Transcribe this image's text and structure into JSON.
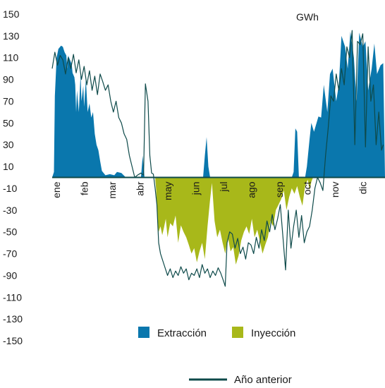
{
  "chart_data": {
    "type": "area",
    "title": "",
    "unit_label": "GWh",
    "xlabel": "",
    "ylabel": "",
    "ylim": [
      -150,
      150
    ],
    "yticks": [
      150,
      130,
      110,
      90,
      70,
      50,
      30,
      10,
      -10,
      -30,
      -50,
      -70,
      -90,
      -110,
      -130,
      -150
    ],
    "categories": [
      "ene",
      "feb",
      "mar",
      "abr",
      "may",
      "jun",
      "jul",
      "ago",
      "sep",
      "oct",
      "nov",
      "dic"
    ],
    "legend": {
      "extraccion_label": "Extracción",
      "inyeccion_label": "Inyección",
      "anterior_label": "Año anterior",
      "position": "bottom"
    },
    "colors": {
      "extraccion": "#0a77ad",
      "inyeccion": "#a8b81a",
      "anterior": "#0e4a4a",
      "axis": "#0e4a4a"
    },
    "series": [
      {
        "name": "Extracción",
        "points": [
          [
            0,
            0
          ],
          [
            0.2,
            5
          ],
          [
            0.3,
            75
          ],
          [
            0.5,
            110
          ],
          [
            0.7,
            118
          ],
          [
            1,
            121
          ],
          [
            1.2,
            120
          ],
          [
            1.4,
            115
          ],
          [
            1.6,
            112
          ],
          [
            1.7,
            100
          ],
          [
            1.8,
            112
          ],
          [
            2,
            108
          ],
          [
            2.2,
            104
          ],
          [
            2.3,
            96
          ],
          [
            2.5,
            92
          ],
          [
            2.6,
            85
          ],
          [
            2.7,
            60
          ],
          [
            2.8,
            80
          ],
          [
            3,
            60
          ],
          [
            3.2,
            95
          ],
          [
            3.3,
            70
          ],
          [
            3.5,
            84
          ],
          [
            3.6,
            65
          ],
          [
            3.8,
            90
          ],
          [
            4,
            60
          ],
          [
            4.2,
            68
          ],
          [
            4.4,
            55
          ],
          [
            4.6,
            60
          ],
          [
            4.8,
            40
          ],
          [
            5,
            30
          ],
          [
            5.2,
            25
          ],
          [
            5.4,
            15
          ],
          [
            5.6,
            6
          ],
          [
            6,
            2
          ],
          [
            6.5,
            3
          ],
          [
            7,
            2
          ],
          [
            7.3,
            5
          ],
          [
            7.8,
            4
          ],
          [
            8.3,
            0
          ],
          [
            10,
            0
          ],
          [
            10.2,
            20
          ],
          [
            10.4,
            0
          ],
          [
            12,
            0
          ],
          [
            16,
            0
          ],
          [
            17,
            0
          ],
          [
            17.2,
            20
          ],
          [
            17.4,
            37
          ],
          [
            17.6,
            10
          ],
          [
            17.8,
            0
          ],
          [
            24,
            0
          ],
          [
            27,
            0
          ],
          [
            27.2,
            5
          ],
          [
            27.4,
            45
          ],
          [
            27.6,
            42
          ],
          [
            27.8,
            0
          ],
          [
            28.5,
            0
          ],
          [
            28.7,
            10
          ],
          [
            29,
            35
          ],
          [
            29.2,
            50
          ],
          [
            29.5,
            42
          ],
          [
            30,
            56
          ],
          [
            30.3,
            55
          ],
          [
            30.6,
            85
          ],
          [
            31,
            60
          ],
          [
            31.3,
            95
          ],
          [
            31.6,
            100
          ],
          [
            32,
            70
          ],
          [
            32.3,
            85
          ],
          [
            32.6,
            130
          ],
          [
            33,
            120
          ],
          [
            33.3,
            100
          ],
          [
            33.6,
            134
          ],
          [
            34,
            110
          ],
          [
            34.3,
            70
          ],
          [
            34.6,
            133
          ],
          [
            35,
            120
          ],
          [
            35.3,
            125
          ],
          [
            35.6,
            80
          ],
          [
            36,
            100
          ],
          [
            36.3,
            123
          ],
          [
            36.6,
            95
          ],
          [
            37,
            103
          ],
          [
            37.3,
            105
          ],
          [
            37.5,
            0
          ]
        ]
      },
      {
        "name": "Inyección",
        "points": [
          [
            11.6,
            0
          ],
          [
            11.7,
            -10
          ],
          [
            11.9,
            -40
          ],
          [
            12,
            -50
          ],
          [
            12.2,
            -45
          ],
          [
            12.4,
            -53
          ],
          [
            12.6,
            -46
          ],
          [
            12.8,
            -38
          ],
          [
            13,
            -55
          ],
          [
            13.3,
            -42
          ],
          [
            13.6,
            -45
          ],
          [
            13.9,
            -35
          ],
          [
            14.2,
            -60
          ],
          [
            14.5,
            -44
          ],
          [
            14.8,
            -50
          ],
          [
            15.1,
            -55
          ],
          [
            15.4,
            -62
          ],
          [
            15.7,
            -70
          ],
          [
            16,
            -65
          ],
          [
            16.3,
            -78
          ],
          [
            16.6,
            -68
          ],
          [
            16.9,
            -60
          ],
          [
            17.2,
            -75
          ],
          [
            17.5,
            -45
          ],
          [
            17.8,
            -20
          ],
          [
            18,
            -5
          ],
          [
            18.3,
            -40
          ],
          [
            18.6,
            -55
          ],
          [
            18.9,
            -48
          ],
          [
            19.2,
            -60
          ],
          [
            19.5,
            -70
          ],
          [
            19.8,
            -55
          ],
          [
            20.1,
            -68
          ],
          [
            20.4,
            -64
          ],
          [
            20.7,
            -80
          ],
          [
            21,
            -72
          ],
          [
            21.3,
            -58
          ],
          [
            21.6,
            -50
          ],
          [
            21.9,
            -45
          ],
          [
            22.2,
            -52
          ],
          [
            22.5,
            -38
          ],
          [
            22.8,
            -55
          ],
          [
            23.1,
            -48
          ],
          [
            23.4,
            -58
          ],
          [
            23.7,
            -70
          ],
          [
            24,
            -62
          ],
          [
            24.3,
            -55
          ],
          [
            24.6,
            -40
          ],
          [
            24.9,
            -45
          ],
          [
            25.2,
            -30
          ],
          [
            25.5,
            -25
          ],
          [
            25.8,
            -20
          ],
          [
            26.1,
            -12
          ],
          [
            26.4,
            -30
          ],
          [
            26.7,
            -18
          ],
          [
            27,
            -10
          ],
          [
            27.3,
            -15
          ],
          [
            27.6,
            -8
          ],
          [
            27.9,
            -18
          ],
          [
            28.2,
            -26
          ],
          [
            28.5,
            -8
          ],
          [
            28.8,
            -2
          ],
          [
            29,
            -12
          ],
          [
            29.2,
            -4
          ],
          [
            29.4,
            0
          ]
        ]
      },
      {
        "name": "Año anterior",
        "points": [
          [
            0,
            100
          ],
          [
            0.3,
            115
          ],
          [
            0.6,
            103
          ],
          [
            0.9,
            112
          ],
          [
            1.2,
            108
          ],
          [
            1.5,
            95
          ],
          [
            1.8,
            110
          ],
          [
            2.1,
            100
          ],
          [
            2.4,
            113
          ],
          [
            2.7,
            96
          ],
          [
            3,
            108
          ],
          [
            3.3,
            90
          ],
          [
            3.6,
            102
          ],
          [
            3.9,
            85
          ],
          [
            4.2,
            98
          ],
          [
            4.5,
            80
          ],
          [
            4.8,
            93
          ],
          [
            5.1,
            76
          ],
          [
            5.4,
            95
          ],
          [
            5.7,
            88
          ],
          [
            6,
            80
          ],
          [
            6.3,
            85
          ],
          [
            6.6,
            70
          ],
          [
            6.9,
            60
          ],
          [
            7.2,
            70
          ],
          [
            7.5,
            55
          ],
          [
            7.8,
            50
          ],
          [
            8.1,
            40
          ],
          [
            8.4,
            35
          ],
          [
            8.7,
            20
          ],
          [
            9,
            10
          ],
          [
            9.3,
            0
          ],
          [
            9.6,
            2
          ],
          [
            10,
            4
          ],
          [
            10.3,
            2
          ],
          [
            10.5,
            86
          ],
          [
            10.8,
            70
          ],
          [
            11,
            20
          ],
          [
            11.2,
            4
          ],
          [
            11.4,
            3
          ],
          [
            11.6,
            -10
          ],
          [
            11.8,
            -25
          ],
          [
            12,
            -60
          ],
          [
            12.2,
            -70
          ],
          [
            12.4,
            -75
          ],
          [
            12.6,
            -80
          ],
          [
            12.8,
            -85
          ],
          [
            13,
            -90
          ],
          [
            13.3,
            -84
          ],
          [
            13.6,
            -92
          ],
          [
            13.9,
            -86
          ],
          [
            14.2,
            -90
          ],
          [
            14.5,
            -82
          ],
          [
            14.8,
            -88
          ],
          [
            15.1,
            -84
          ],
          [
            15.4,
            -94
          ],
          [
            15.7,
            -88
          ],
          [
            16,
            -90
          ],
          [
            16.3,
            -84
          ],
          [
            16.6,
            -92
          ],
          [
            16.9,
            -80
          ],
          [
            17.2,
            -88
          ],
          [
            17.5,
            -84
          ],
          [
            17.8,
            -92
          ],
          [
            18.1,
            -86
          ],
          [
            18.4,
            -90
          ],
          [
            18.7,
            -83
          ],
          [
            19,
            -88
          ],
          [
            19.3,
            -95
          ],
          [
            19.5,
            -100
          ],
          [
            19.7,
            -60
          ],
          [
            20,
            -50
          ],
          [
            20.3,
            -52
          ],
          [
            20.6,
            -65
          ],
          [
            20.9,
            -56
          ],
          [
            21.2,
            -70
          ],
          [
            21.5,
            -64
          ],
          [
            21.8,
            -75
          ],
          [
            22.1,
            -60
          ],
          [
            22.4,
            -62
          ],
          [
            22.7,
            -70
          ],
          [
            23,
            -55
          ],
          [
            23.3,
            -65
          ],
          [
            23.6,
            -48
          ],
          [
            23.9,
            -58
          ],
          [
            24.2,
            -40
          ],
          [
            24.5,
            -50
          ],
          [
            24.8,
            -34
          ],
          [
            25.1,
            -48
          ],
          [
            25.4,
            -38
          ],
          [
            25.7,
            -25
          ],
          [
            26,
            -55
          ],
          [
            26.3,
            -85
          ],
          [
            26.6,
            -30
          ],
          [
            26.9,
            -65
          ],
          [
            27.2,
            -45
          ],
          [
            27.5,
            -30
          ],
          [
            27.8,
            -55
          ],
          [
            28.1,
            -35
          ],
          [
            28.4,
            -60
          ],
          [
            28.7,
            -50
          ],
          [
            29,
            -45
          ],
          [
            29.3,
            -30
          ],
          [
            29.6,
            -10
          ],
          [
            29.9,
            0
          ],
          [
            30.2,
            -5
          ],
          [
            30.5,
            -12
          ],
          [
            30.8,
            20
          ],
          [
            31.1,
            45
          ],
          [
            31.4,
            75
          ],
          [
            31.7,
            70
          ],
          [
            32,
            95
          ],
          [
            32.3,
            80
          ],
          [
            32.6,
            100
          ],
          [
            32.9,
            85
          ],
          [
            33.2,
            120
          ],
          [
            33.5,
            110
          ],
          [
            33.8,
            135
          ],
          [
            34.1,
            30
          ],
          [
            34.4,
            125
          ],
          [
            34.7,
            122
          ],
          [
            35,
            132
          ],
          [
            35.3,
            28
          ],
          [
            35.6,
            120
          ],
          [
            35.9,
            70
          ],
          [
            36.2,
            85
          ],
          [
            36.5,
            30
          ],
          [
            36.8,
            60
          ],
          [
            37.1,
            25
          ],
          [
            37.3,
            30
          ]
        ]
      }
    ]
  }
}
